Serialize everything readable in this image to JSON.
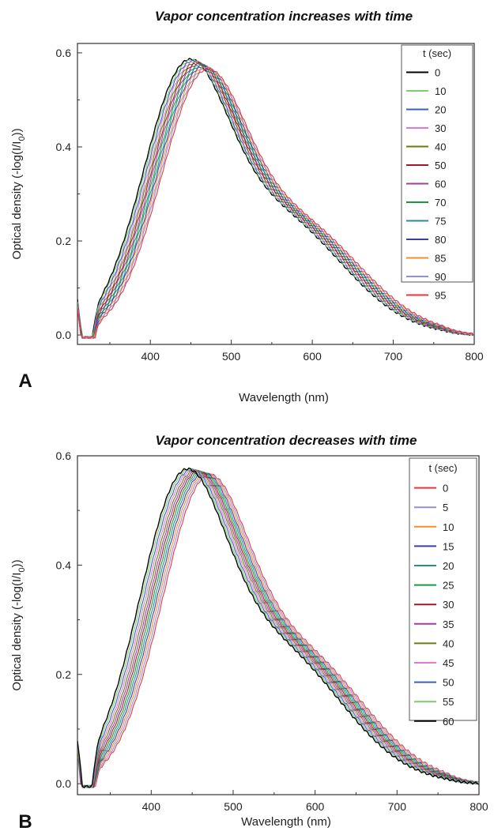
{
  "chart_data": [
    {
      "panel_label": "A",
      "type": "line",
      "title": "Vapor concentration increases with time",
      "xlabel": "Wavelength (nm)",
      "ylabel": "Optical density (-log(I/I",
      "ylabel_sub": "0",
      "ylabel_end": "))",
      "xlim": [
        310,
        800
      ],
      "ylim": [
        -0.02,
        0.62
      ],
      "xticks": [
        400,
        500,
        600,
        700,
        800
      ],
      "yticks": [
        0.0,
        0.2,
        0.4,
        0.6
      ],
      "legend": {
        "title": "t (sec)",
        "placement": "right"
      },
      "peak_start": [
        440,
        0.565
      ],
      "peak_end": [
        462,
        0.545
      ],
      "series": [
        {
          "name": "0",
          "color": "#000000"
        },
        {
          "name": "10",
          "color": "#7ccc6e"
        },
        {
          "name": "20",
          "color": "#3a5fbf"
        },
        {
          "name": "30",
          "color": "#e07bd0"
        },
        {
          "name": "40",
          "color": "#6d7a10"
        },
        {
          "name": "50",
          "color": "#9b1b2a"
        },
        {
          "name": "60",
          "color": "#9c40a0"
        },
        {
          "name": "70",
          "color": "#179a3a"
        },
        {
          "name": "75",
          "color": "#2a8e8e"
        },
        {
          "name": "80",
          "color": "#3b3fa3"
        },
        {
          "name": "85",
          "color": "#ff8a2a"
        },
        {
          "name": "90",
          "color": "#8f8fe0"
        },
        {
          "name": "95",
          "color": "#e8373a"
        }
      ]
    },
    {
      "panel_label": "B",
      "type": "line",
      "title": "Vapor concentration decreases with time",
      "xlabel": "Wavelength (nm)",
      "ylabel": "Optical density (-log(I/I",
      "ylabel_sub": "0",
      "ylabel_end": "))",
      "xlim": [
        310,
        800
      ],
      "ylim": [
        -0.02,
        0.6
      ],
      "xticks": [
        400,
        500,
        600,
        700,
        800
      ],
      "yticks": [
        0.0,
        0.2,
        0.4,
        0.6
      ],
      "legend": {
        "title": "t (sec)",
        "placement": "right"
      },
      "peak_start": [
        462,
        0.545
      ],
      "peak_end": [
        435,
        0.555
      ],
      "series": [
        {
          "name": "0",
          "color": "#e8373a"
        },
        {
          "name": "5",
          "color": "#8f8fe0"
        },
        {
          "name": "10",
          "color": "#ff8a2a"
        },
        {
          "name": "15",
          "color": "#3b3fa3"
        },
        {
          "name": "20",
          "color": "#2a8e8e"
        },
        {
          "name": "25",
          "color": "#179a3a"
        },
        {
          "name": "30",
          "color": "#9b1b2a"
        },
        {
          "name": "35",
          "color": "#9c40a0"
        },
        {
          "name": "40",
          "color": "#6d7a10"
        },
        {
          "name": "45",
          "color": "#e07bd0"
        },
        {
          "name": "50",
          "color": "#3a5fbf"
        },
        {
          "name": "55",
          "color": "#7ccc6e"
        },
        {
          "name": "60",
          "color": "#000000"
        }
      ]
    }
  ]
}
